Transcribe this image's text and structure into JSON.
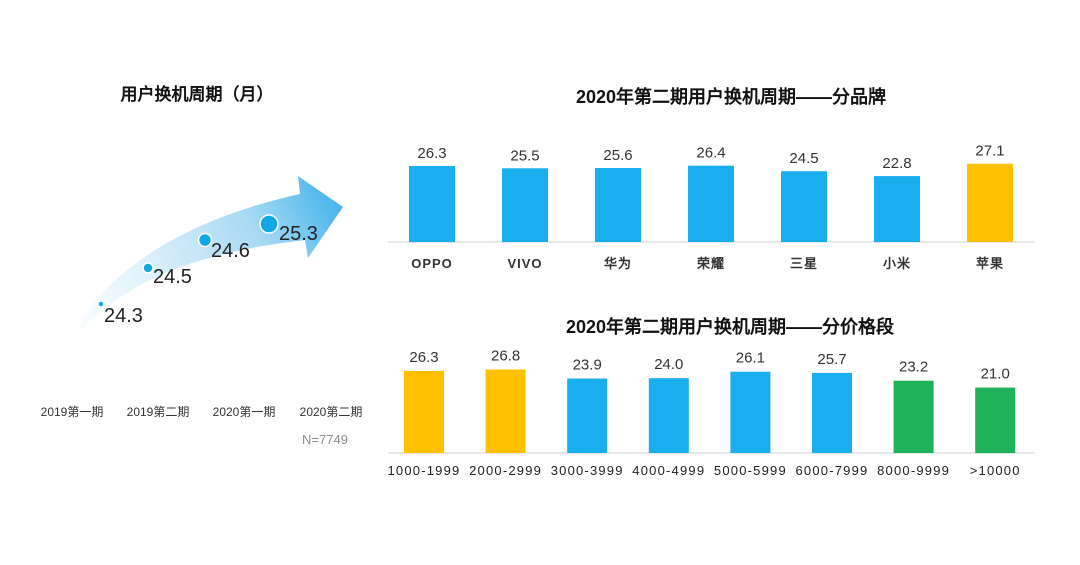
{
  "chart_data": [
    {
      "type": "scatter",
      "title": "用户换机周期（月）",
      "categories": [
        "2019第一期",
        "2019第二期",
        "2020第一期",
        "2020第二期"
      ],
      "values": [
        24.3,
        24.5,
        24.6,
        25.3
      ],
      "note": "N=7749",
      "color": "#13A8E5",
      "grid": false
    },
    {
      "type": "bar",
      "title": "2020年第二期用户换机周期——分品牌",
      "categories": [
        "OPPO",
        "VIVO",
        "华为",
        "荣耀",
        "三星",
        "小米",
        "苹果"
      ],
      "values": [
        26.3,
        25.5,
        25.6,
        26.4,
        24.5,
        22.8,
        27.1
      ],
      "colors": [
        "#19AFEE",
        "#19AFEE",
        "#19AFEE",
        "#19AFEE",
        "#19AFEE",
        "#19AFEE",
        "#FFC000"
      ],
      "ylim": [
        0,
        30
      ],
      "grid": false
    },
    {
      "type": "bar",
      "title": "2020年第二期用户换机周期——分价格段",
      "categories": [
        "1000-1999",
        "2000-2999",
        "3000-3999",
        "4000-4999",
        "5000-5999",
        "6000-7999",
        "8000-9999",
        ">10000"
      ],
      "values": [
        26.3,
        26.8,
        23.9,
        24.0,
        26.1,
        25.7,
        23.2,
        21.0
      ],
      "colors": [
        "#FFC000",
        "#FFC000",
        "#19AFEE",
        "#19AFEE",
        "#19AFEE",
        "#19AFEE",
        "#1FB25A",
        "#1FB25A"
      ],
      "ylim": [
        0,
        30
      ],
      "grid": false
    }
  ]
}
